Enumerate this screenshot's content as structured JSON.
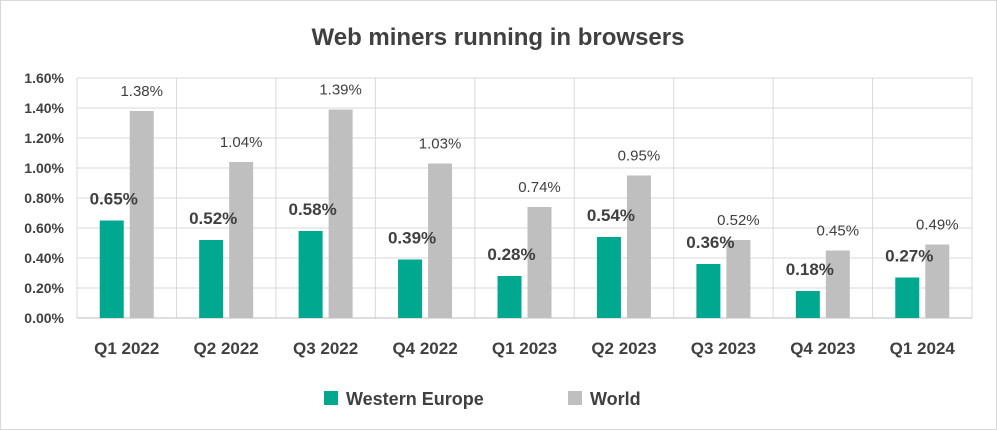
{
  "chart_data": {
    "type": "bar",
    "title": "Web miners running in browsers",
    "categories": [
      "Q1 2022",
      "Q2 2022",
      "Q3 2022",
      "Q4 2022",
      "Q1 2023",
      "Q2 2023",
      "Q3 2023",
      "Q4 2023",
      "Q1 2024"
    ],
    "series": [
      {
        "name": "Western Europe",
        "color": "#00a88f",
        "values": [
          0.65,
          0.52,
          0.58,
          0.39,
          0.28,
          0.54,
          0.36,
          0.18,
          0.27
        ],
        "labels": [
          "0.65%",
          "0.52%",
          "0.58%",
          "0.39%",
          "0.28%",
          "0.54%",
          "0.36%",
          "0.18%",
          "0.27%"
        ]
      },
      {
        "name": "World",
        "color": "#bfbfbf",
        "values": [
          1.38,
          1.04,
          1.39,
          1.03,
          0.74,
          0.95,
          0.52,
          0.45,
          0.49
        ],
        "labels": [
          "1.38%",
          "1.04%",
          "1.39%",
          "1.03%",
          "0.74%",
          "0.95%",
          "0.52%",
          "0.45%",
          "0.49%"
        ]
      }
    ],
    "ylim": [
      0,
      1.6
    ],
    "yticks": [
      "0.00%",
      "0.20%",
      "0.40%",
      "0.60%",
      "0.80%",
      "1.00%",
      "1.20%",
      "1.40%",
      "1.60%"
    ],
    "xlabel": "",
    "ylabel": "",
    "grid": true,
    "legend_position": "bottom",
    "gridline_color": "#d9d9d9",
    "axis_color": "#bfbfbf"
  }
}
